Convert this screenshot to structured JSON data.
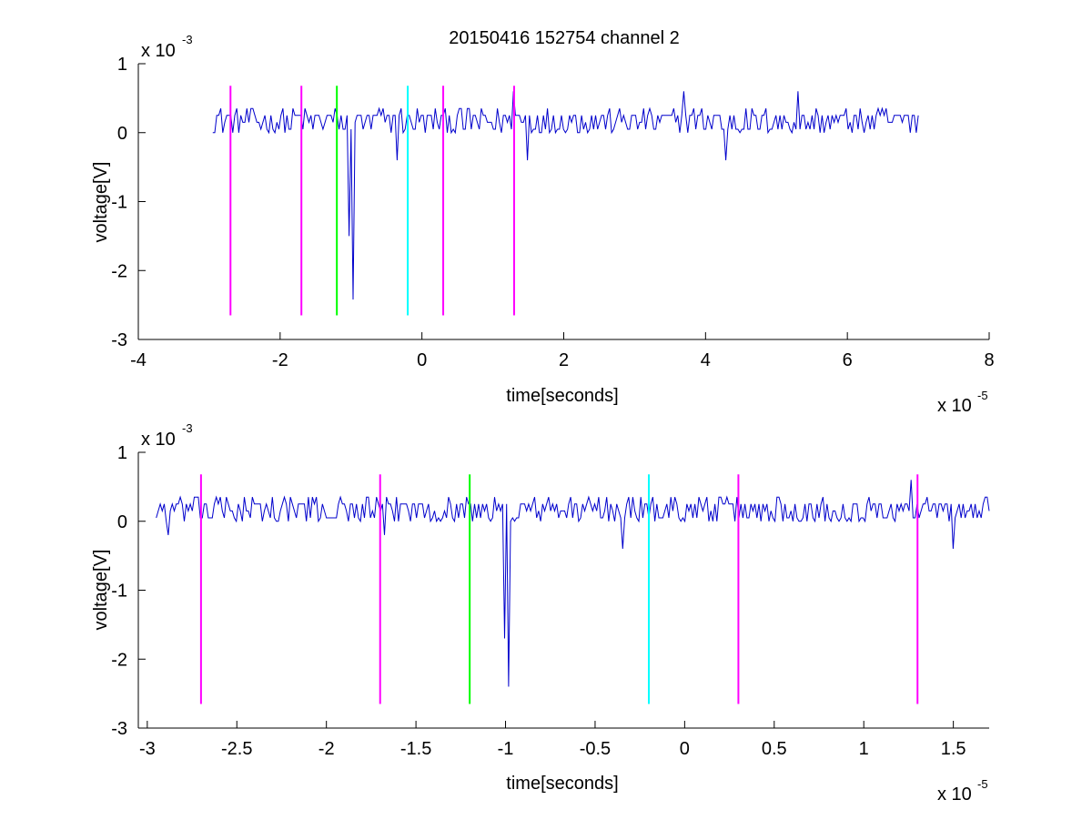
{
  "figure": {
    "title": "20150416 152754 channel 2"
  },
  "chart_data": [
    {
      "type": "line",
      "title": "20150416 152754 channel 2",
      "xlabel": "time[seconds]",
      "ylabel": "voltage[V]",
      "x_multiplier_label": "x 10",
      "x_multiplier_exp": "-5",
      "y_multiplier_label": "x 10",
      "y_multiplier_exp": "-3",
      "xlim": [
        -4,
        8
      ],
      "ylim": [
        -3,
        1
      ],
      "xticks": [
        -4,
        -2,
        0,
        2,
        4,
        6,
        8
      ],
      "yticks": [
        -3,
        -2,
        -1,
        0,
        1
      ],
      "xtick_labels": [
        "-4",
        "-2",
        "0",
        "2",
        "4",
        "6",
        "8"
      ],
      "ytick_labels": [
        "-3",
        "-2",
        "-1",
        "0",
        "1"
      ],
      "grid": false,
      "signal": {
        "color": "#0000cc",
        "x_range": [
          -2.95,
          7.0
        ],
        "baseline": 0.1,
        "noise": 0.12,
        "dips": [
          {
            "x": -0.98,
            "y": -2.42
          },
          {
            "x": -1.02,
            "y": -1.5
          },
          {
            "x": -0.35,
            "y": -0.4
          },
          {
            "x": 3.7,
            "y": -0.4
          },
          {
            "x": 4.3,
            "y": -0.4
          },
          {
            "x": 1.5,
            "y": -0.4
          }
        ],
        "peaks": [
          {
            "x": 1.3,
            "y": 0.6
          },
          {
            "x": 3.7,
            "y": 0.6
          },
          {
            "x": 5.3,
            "y": 0.6
          }
        ]
      },
      "markers": [
        {
          "x": -2.7,
          "color": "#ff00ff",
          "y_top": 0.68,
          "y_bottom": -2.65
        },
        {
          "x": -1.7,
          "color": "#ff00ff",
          "y_top": 0.68,
          "y_bottom": -2.65
        },
        {
          "x": -1.2,
          "color": "#00ff00",
          "y_top": 0.68,
          "y_bottom": -2.65
        },
        {
          "x": -0.2,
          "color": "#00ffff",
          "y_top": 0.68,
          "y_bottom": -2.65
        },
        {
          "x": 0.3,
          "color": "#ff00ff",
          "y_top": 0.68,
          "y_bottom": -2.65
        },
        {
          "x": 1.3,
          "color": "#ff00ff",
          "y_top": 0.68,
          "y_bottom": -2.65
        }
      ]
    },
    {
      "type": "line",
      "title": "",
      "xlabel": "time[seconds]",
      "ylabel": "voltage[V]",
      "x_multiplier_label": "x 10",
      "x_multiplier_exp": "-5",
      "y_multiplier_label": "x 10",
      "y_multiplier_exp": "-3",
      "xlim": [
        -3.05,
        1.7
      ],
      "ylim": [
        -3,
        1
      ],
      "xticks": [
        -3,
        -2.5,
        -2,
        -1.5,
        -1,
        -0.5,
        0,
        0.5,
        1,
        1.5
      ],
      "yticks": [
        -3,
        -2,
        -1,
        0,
        1
      ],
      "xtick_labels": [
        "-3",
        "-2.5",
        "-2",
        "-1.5",
        "-1",
        "-0.5",
        "0",
        "0.5",
        "1",
        "1.5"
      ],
      "ytick_labels": [
        "-3",
        "-2",
        "-1",
        "0",
        "1"
      ],
      "grid": false,
      "signal": {
        "color": "#0000cc",
        "x_range": [
          -2.95,
          1.7
        ],
        "baseline": 0.1,
        "noise": 0.12,
        "dips": [
          {
            "x": -0.98,
            "y": -2.4
          },
          {
            "x": -1.0,
            "y": -1.7
          },
          {
            "x": -0.35,
            "y": -0.4
          },
          {
            "x": 1.5,
            "y": -0.4
          },
          {
            "x": -1.68,
            "y": -0.2
          },
          {
            "x": -2.88,
            "y": -0.2
          }
        ],
        "peaks": [
          {
            "x": 1.26,
            "y": 0.6
          }
        ]
      },
      "markers": [
        {
          "x": -2.7,
          "color": "#ff00ff",
          "y_top": 0.68,
          "y_bottom": -2.65
        },
        {
          "x": -1.7,
          "color": "#ff00ff",
          "y_top": 0.68,
          "y_bottom": -2.65
        },
        {
          "x": -1.2,
          "color": "#00ff00",
          "y_top": 0.68,
          "y_bottom": -2.65
        },
        {
          "x": -0.2,
          "color": "#00ffff",
          "y_top": 0.68,
          "y_bottom": -2.65
        },
        {
          "x": 0.3,
          "color": "#ff00ff",
          "y_top": 0.68,
          "y_bottom": -2.65
        },
        {
          "x": 1.3,
          "color": "#ff00ff",
          "y_top": 0.68,
          "y_bottom": -2.65
        }
      ]
    }
  ]
}
